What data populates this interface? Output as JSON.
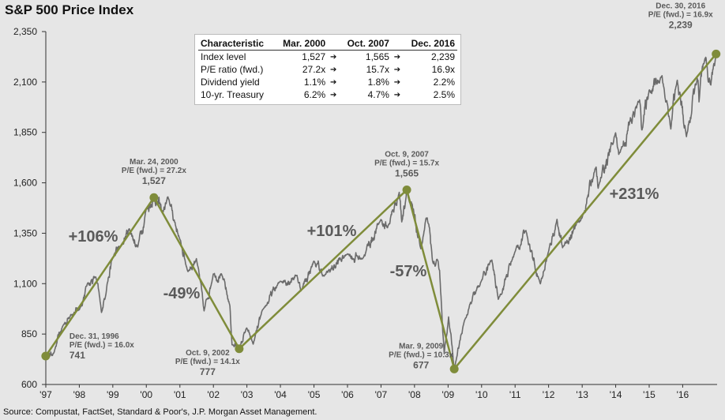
{
  "title": "S&P 500 Price Index",
  "source": "Source: Compustat, FactSet, Standard & Poor's, J.P. Morgan Asset Management.",
  "table": {
    "headers": [
      "Characteristic",
      "Mar. 2000",
      "Oct. 2007",
      "Dec. 2016"
    ],
    "arrow": "➔",
    "rows": [
      {
        "label": "Index level",
        "v1": "1,527",
        "v2": "1,565",
        "v3": "2,239"
      },
      {
        "label": "P/E ratio (fwd.)",
        "v1": "27.2x",
        "v2": "15.7x",
        "v3": "16.9x"
      },
      {
        "label": "Dividend yield",
        "v1": "1.1%",
        "v2": "1.8%",
        "v3": "2.2%"
      },
      {
        "label": "10-yr. Treasury",
        "v1": "6.2%",
        "v2": "4.7%",
        "v3": "2.5%"
      }
    ]
  },
  "colors": {
    "price_line": "#6b6b6b",
    "trend_line": "#7f8c3a",
    "background": "#e6e6e6"
  },
  "chart_data": {
    "type": "line",
    "title": "S&P 500 Price Index",
    "x_ticks": [
      "'97",
      "'98",
      "'99",
      "'00",
      "'01",
      "'02",
      "'03",
      "'04",
      "'05",
      "'06",
      "'07",
      "'08",
      "'09",
      "'10",
      "'11",
      "'12",
      "'13",
      "'14",
      "'15",
      "'16"
    ],
    "y_ticks": [
      "600",
      "850",
      "1,100",
      "1,350",
      "1,600",
      "1,850",
      "2,100",
      "2,350"
    ],
    "ylim": [
      600,
      2350
    ],
    "xlim": [
      "1997-01-01",
      "2017-01-10"
    ],
    "grid": false,
    "series": [
      {
        "values": [
          [
            "1996-12-31",
            741
          ],
          [
            "1997-03-31",
            757
          ],
          [
            "1997-06-30",
            885
          ],
          [
            "1997-09-30",
            947
          ],
          [
            "1997-12-31",
            970
          ],
          [
            "1998-03-31",
            1101
          ],
          [
            "1998-06-30",
            1133
          ],
          [
            "1998-08-31",
            957
          ],
          [
            "1998-10-31",
            1098
          ],
          [
            "1998-12-31",
            1229
          ],
          [
            "1999-03-31",
            1286
          ],
          [
            "1999-06-30",
            1372
          ],
          [
            "1999-09-30",
            1282
          ],
          [
            "1999-12-31",
            1469
          ],
          [
            "2000-03-24",
            1527
          ],
          [
            "2000-06-30",
            1454
          ],
          [
            "2000-09-01",
            1520
          ],
          [
            "2000-12-31",
            1320
          ],
          [
            "2001-03-31",
            1160
          ],
          [
            "2001-06-30",
            1224
          ],
          [
            "2001-09-21",
            965
          ],
          [
            "2001-12-31",
            1148
          ],
          [
            "2002-03-31",
            1147
          ],
          [
            "2002-06-30",
            990
          ],
          [
            "2002-07-23",
            797
          ],
          [
            "2002-10-09",
            777
          ],
          [
            "2002-12-31",
            880
          ],
          [
            "2003-03-11",
            800
          ],
          [
            "2003-06-30",
            975
          ],
          [
            "2003-12-31",
            1112
          ],
          [
            "2004-06-30",
            1141
          ],
          [
            "2004-08-12",
            1064
          ],
          [
            "2004-12-31",
            1212
          ],
          [
            "2005-04-20",
            1137
          ],
          [
            "2005-12-31",
            1248
          ],
          [
            "2006-06-13",
            1223
          ],
          [
            "2006-12-31",
            1418
          ],
          [
            "2007-03-13",
            1377
          ],
          [
            "2007-07-19",
            1553
          ],
          [
            "2007-08-15",
            1406
          ],
          [
            "2007-10-09",
            1565
          ],
          [
            "2008-03-10",
            1273
          ],
          [
            "2008-05-19",
            1426
          ],
          [
            "2008-07-15",
            1214
          ],
          [
            "2008-09-30",
            1166
          ],
          [
            "2008-11-20",
            752
          ],
          [
            "2009-01-06",
            935
          ],
          [
            "2009-03-09",
            677
          ],
          [
            "2009-06-30",
            919
          ],
          [
            "2009-12-31",
            1115
          ],
          [
            "2010-04-23",
            1217
          ],
          [
            "2010-07-02",
            1022
          ],
          [
            "2010-12-31",
            1258
          ],
          [
            "2011-04-29",
            1364
          ],
          [
            "2011-10-03",
            1099
          ],
          [
            "2011-12-31",
            1258
          ],
          [
            "2012-04-02",
            1419
          ],
          [
            "2012-06-01",
            1278
          ],
          [
            "2012-12-31",
            1426
          ],
          [
            "2013-05-21",
            1669
          ],
          [
            "2013-06-24",
            1573
          ],
          [
            "2013-12-31",
            1848
          ],
          [
            "2014-02-03",
            1741
          ],
          [
            "2014-09-18",
            2011
          ],
          [
            "2014-10-15",
            1862
          ],
          [
            "2014-12-31",
            2059
          ],
          [
            "2015-05-21",
            2131
          ],
          [
            "2015-08-25",
            1867
          ],
          [
            "2015-11-03",
            2109
          ],
          [
            "2016-02-11",
            1829
          ],
          [
            "2016-06-08",
            2119
          ],
          [
            "2016-06-27",
            2001
          ],
          [
            "2016-08-15",
            2191
          ],
          [
            "2016-11-03",
            2085
          ],
          [
            "2016-12-30",
            2239
          ]
        ]
      }
    ],
    "trend_points": [
      {
        "date": "1996-12-31",
        "value": 741,
        "label_date": "Dec. 31, 1996",
        "label_pe": "P/E (fwd.) = 16.0x",
        "label_value": "741"
      },
      {
        "date": "2000-03-24",
        "value": 1527,
        "label_date": "Mar. 24, 2000",
        "label_pe": "P/E (fwd.) = 27.2x",
        "label_value": "1,527"
      },
      {
        "date": "2002-10-09",
        "value": 777,
        "label_date": "Oct. 9, 2002",
        "label_pe": "P/E (fwd.) = 14.1x",
        "label_value": "777"
      },
      {
        "date": "2007-10-09",
        "value": 1565,
        "label_date": "Oct. 9, 2007",
        "label_pe": "P/E (fwd.) = 15.7x",
        "label_value": "1,565"
      },
      {
        "date": "2009-03-09",
        "value": 677,
        "label_date": "Mar. 9, 2009",
        "label_pe": "P/E (fwd.) = 10.3x",
        "label_value": "677"
      },
      {
        "date": "2016-12-30",
        "value": 2239,
        "label_date": "Dec. 30, 2016",
        "label_pe": "P/E (fwd.) = 16.9x",
        "label_value": "2,239"
      }
    ],
    "segment_labels": [
      "+106%",
      "-49%",
      "+101%",
      "-57%",
      "+231%"
    ]
  }
}
